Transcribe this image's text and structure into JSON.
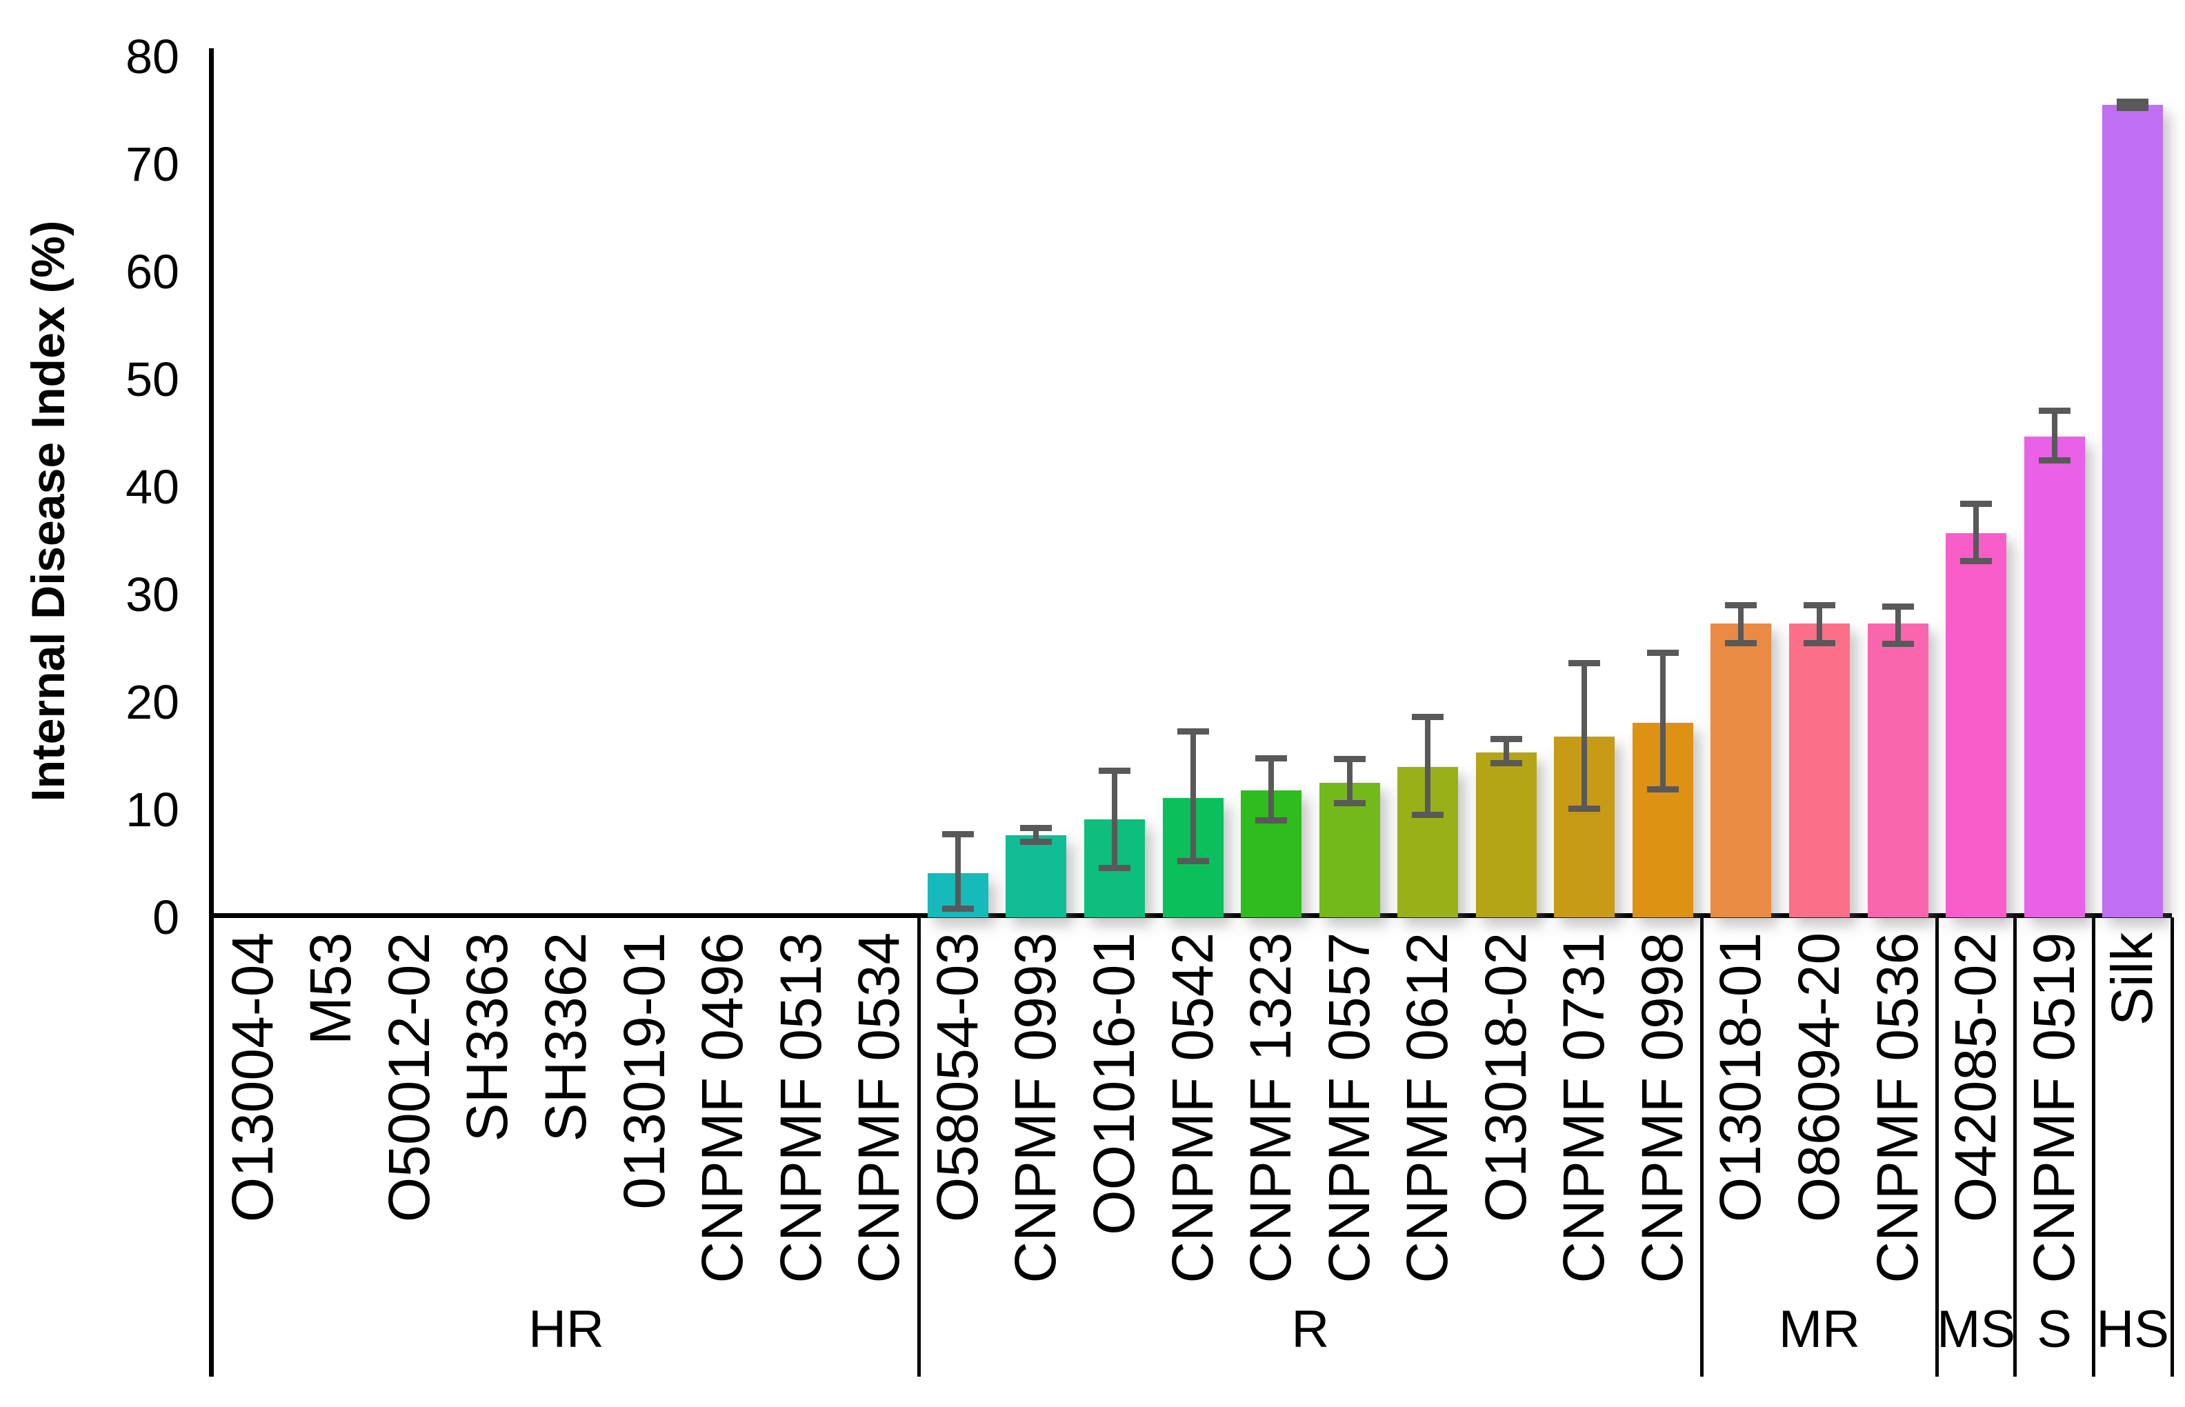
{
  "chart_data": {
    "type": "bar",
    "title": "",
    "ylabel": "Internal Disease Index (%)",
    "xlabel": "",
    "ylim": [
      0,
      80
    ],
    "yticks": [
      0,
      10,
      20,
      30,
      40,
      50,
      60,
      70,
      80
    ],
    "grid": false,
    "legend": false,
    "axis_color": "#000000",
    "error_bar_color": "#595959",
    "groups": [
      {
        "label": "HR",
        "count": 9
      },
      {
        "label": "R",
        "count": 10
      },
      {
        "label": "MR",
        "count": 3
      },
      {
        "label": "MS",
        "count": 1
      },
      {
        "label": "S",
        "count": 1
      },
      {
        "label": "HS",
        "count": 1
      }
    ],
    "categories": [
      "O13004-04",
      "M53",
      "O50012-02",
      "SH3363",
      "SH3362",
      "013019-01",
      "CNPMF 0496",
      "CNPMF 0513",
      "CNPMF 0534",
      "O58054-03",
      "CNPMF 0993",
      "OO1016-01",
      "CNPMF 0542",
      "CNPMF 1323",
      "CNPMF 0557",
      "CNPMF 0612",
      "O13018-02",
      "CNPMF 0731",
      "CNPMF 0998",
      "O13018-01",
      "O86094-20",
      "CNPMF 0536",
      "O42085-02",
      "CNPMF 0519",
      "Silk"
    ],
    "series": [
      {
        "name": "Internal Disease Index (%)",
        "values": [
          0,
          0,
          0,
          0,
          0,
          0,
          0,
          0,
          0,
          4.1,
          7.6,
          9.1,
          11.1,
          11.8,
          12.5,
          14.0,
          15.3,
          16.8,
          18.1,
          27.3,
          27.3,
          27.3,
          35.7,
          44.7,
          75.5
        ],
        "err_low": [
          null,
          null,
          null,
          null,
          null,
          null,
          null,
          null,
          null,
          0.8,
          7.0,
          4.6,
          5.2,
          9.0,
          10.6,
          9.5,
          14.3,
          10.1,
          11.9,
          25.5,
          25.5,
          25.4,
          33.1,
          42.5,
          75.2
        ],
        "err_high": [
          null,
          null,
          null,
          null,
          null,
          null,
          null,
          null,
          null,
          7.7,
          8.3,
          13.6,
          17.3,
          14.8,
          14.7,
          18.6,
          16.6,
          23.6,
          24.6,
          29.0,
          29.0,
          28.9,
          38.4,
          47.1,
          75.8
        ],
        "colors": [
          null,
          null,
          null,
          null,
          null,
          null,
          null,
          null,
          null,
          "#16BABA",
          "#11BD95",
          "#0EBE7C",
          "#0BBF5A",
          "#2FBC1E",
          "#73B91A",
          "#9AB019",
          "#B4A517",
          "#C89B16",
          "#DD9214",
          "#EA8B43",
          "#FB7088",
          "#FA66AE",
          "#F85DCA",
          "#E961E6",
          "#C06FF3"
        ]
      }
    ]
  }
}
